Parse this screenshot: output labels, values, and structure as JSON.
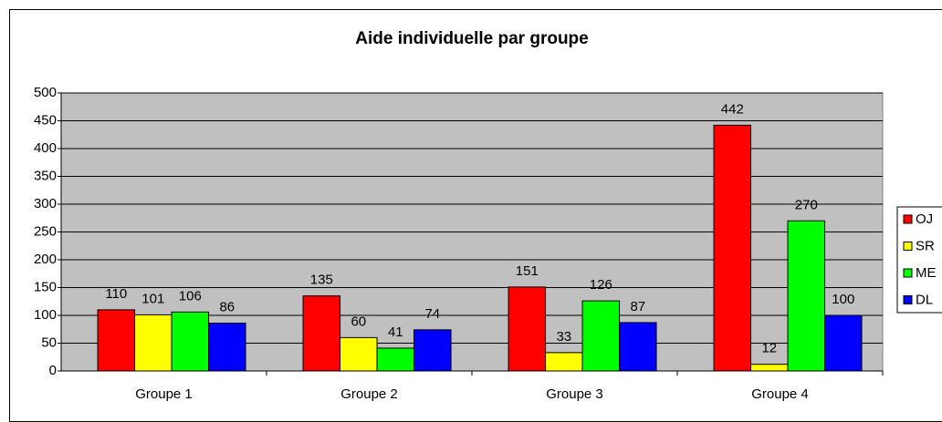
{
  "chart_data": {
    "type": "bar",
    "title": "Aide individuelle par groupe",
    "categories": [
      "Groupe 1",
      "Groupe 2",
      "Groupe 3",
      "Groupe 4"
    ],
    "series": [
      {
        "name": "OJ",
        "color": "#ff0000",
        "values": [
          110,
          135,
          151,
          442
        ]
      },
      {
        "name": "SR",
        "color": "#ffff00",
        "values": [
          101,
          60,
          33,
          12
        ]
      },
      {
        "name": "ME",
        "color": "#00ff00",
        "values": [
          106,
          41,
          126,
          270
        ]
      },
      {
        "name": "DL",
        "color": "#0000ff",
        "values": [
          86,
          74,
          87,
          100
        ]
      }
    ],
    "ylim": [
      0,
      500
    ],
    "yticks": [
      0,
      50,
      100,
      150,
      200,
      250,
      300,
      350,
      400,
      450,
      500
    ],
    "grid": true,
    "legend": "right"
  }
}
